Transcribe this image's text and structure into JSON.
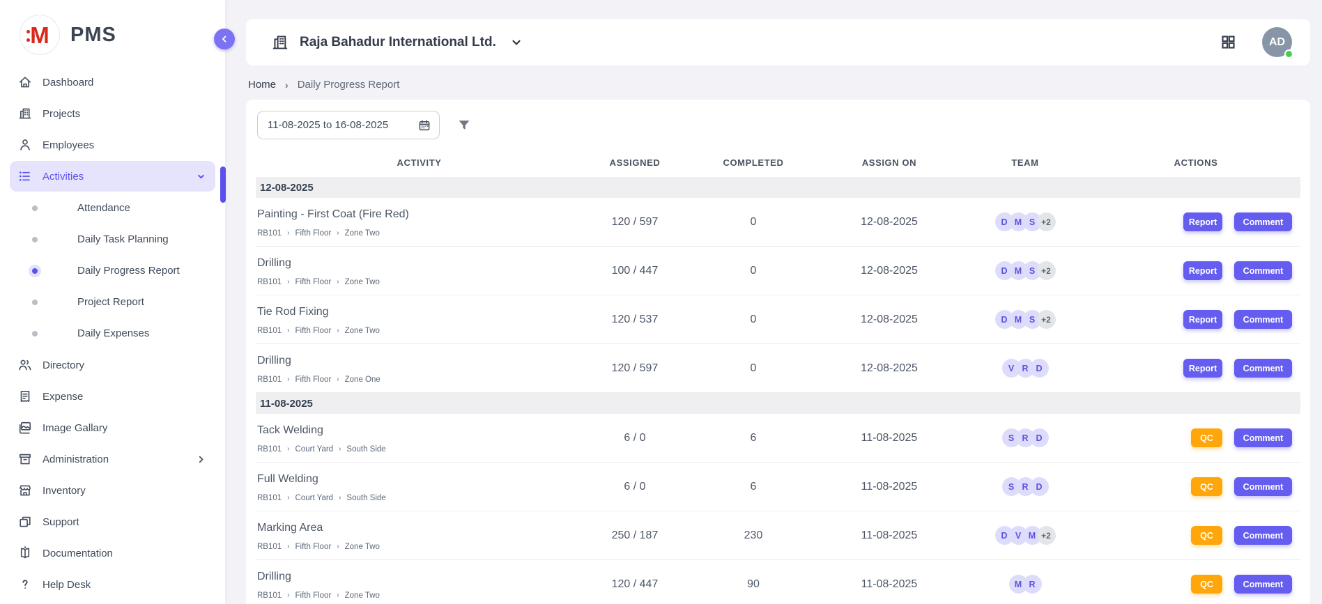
{
  "app": {
    "logo_text": "PMS",
    "logo_letter": "M"
  },
  "colors": {
    "accent": "#655df0",
    "accent_light": "#e6e4fc",
    "qc_orange": "#ffa60a",
    "presence_green": "#43d14d",
    "logo_red": "#d9291c",
    "page_bg": "#f2f2f7",
    "badge_purple_bg": "#dedcfb",
    "badge_purple_text": "#5a52e0",
    "date_bar_bg": "#efeff1"
  },
  "sidebar": {
    "items": [
      {
        "label": "Dashboard",
        "icon": "home"
      },
      {
        "label": "Projects",
        "icon": "buildings"
      },
      {
        "label": "Employees",
        "icon": "person"
      },
      {
        "label": "Activities",
        "icon": "list",
        "active": true,
        "expanded": true,
        "children": [
          {
            "label": "Attendance"
          },
          {
            "label": "Daily Task Planning"
          },
          {
            "label": "Daily Progress Report",
            "active": true
          },
          {
            "label": "Project Report"
          },
          {
            "label": "Daily Expenses"
          }
        ]
      },
      {
        "label": "Directory",
        "icon": "people"
      },
      {
        "label": "Expense",
        "icon": "receipt"
      },
      {
        "label": "Image Gallary",
        "icon": "image"
      },
      {
        "label": "Administration",
        "icon": "archive",
        "has_submenu": true
      },
      {
        "label": "Inventory",
        "icon": "store"
      },
      {
        "label": "Support",
        "icon": "layers"
      },
      {
        "label": "Documentation",
        "icon": "book"
      },
      {
        "label": "Help Desk",
        "icon": "question"
      }
    ]
  },
  "header": {
    "company": "Raja Bahadur International Ltd.",
    "avatar_initials": "AD"
  },
  "breadcrumb": {
    "items": [
      "Home",
      "Daily Progress Report"
    ]
  },
  "filter": {
    "date_range": "11-08-2025 to 16-08-2025"
  },
  "table": {
    "columns": [
      "ACTIVITY",
      "ASSIGNED",
      "COMPLETED",
      "ASSIGN ON",
      "TEAM",
      "ACTIONS"
    ],
    "comment_label": "Comment",
    "sections": [
      {
        "date": "12-08-2025",
        "rows": [
          {
            "activity": "Painting - First Coat (Fire Red)",
            "path": [
              "RB101",
              "Fifth Floor",
              "Zone Two"
            ],
            "assigned": "120 / 597",
            "completed": "0",
            "assign_on": "12-08-2025",
            "team": [
              "D",
              "M",
              "S"
            ],
            "team_extra": "+2",
            "primary_action": "Report"
          },
          {
            "activity": "Drilling",
            "path": [
              "RB101",
              "Fifth Floor",
              "Zone Two"
            ],
            "assigned": "100 / 447",
            "completed": "0",
            "assign_on": "12-08-2025",
            "team": [
              "D",
              "M",
              "S"
            ],
            "team_extra": "+2",
            "primary_action": "Report"
          },
          {
            "activity": "Tie Rod Fixing",
            "path": [
              "RB101",
              "Fifth Floor",
              "Zone Two"
            ],
            "assigned": "120 / 537",
            "completed": "0",
            "assign_on": "12-08-2025",
            "team": [
              "D",
              "M",
              "S"
            ],
            "team_extra": "+2",
            "primary_action": "Report"
          },
          {
            "activity": "Drilling",
            "path": [
              "RB101",
              "Fifth Floor",
              "Zone One"
            ],
            "assigned": "120 / 597",
            "completed": "0",
            "assign_on": "12-08-2025",
            "team": [
              "V",
              "R",
              "D"
            ],
            "team_extra": null,
            "primary_action": "Report"
          }
        ]
      },
      {
        "date": "11-08-2025",
        "rows": [
          {
            "activity": "Tack Welding",
            "path": [
              "RB101",
              "Court Yard",
              "South Side"
            ],
            "assigned": "6 / 0",
            "completed": "6",
            "assign_on": "11-08-2025",
            "team": [
              "S",
              "R",
              "D"
            ],
            "team_extra": null,
            "primary_action": "QC"
          },
          {
            "activity": "Full Welding",
            "path": [
              "RB101",
              "Court Yard",
              "South Side"
            ],
            "assigned": "6 / 0",
            "completed": "6",
            "assign_on": "11-08-2025",
            "team": [
              "S",
              "R",
              "D"
            ],
            "team_extra": null,
            "primary_action": "QC"
          },
          {
            "activity": "Marking Area",
            "path": [
              "RB101",
              "Fifth Floor",
              "Zone Two"
            ],
            "assigned": "250 / 187",
            "completed": "230",
            "assign_on": "11-08-2025",
            "team": [
              "D",
              "V",
              "M"
            ],
            "team_extra": "+2",
            "primary_action": "QC"
          },
          {
            "activity": "Drilling",
            "path": [
              "RB101",
              "Fifth Floor",
              "Zone Two"
            ],
            "assigned": "120 / 447",
            "completed": "90",
            "assign_on": "11-08-2025",
            "team": [
              "M",
              "R"
            ],
            "team_extra": null,
            "primary_action": "QC"
          }
        ]
      }
    ]
  }
}
